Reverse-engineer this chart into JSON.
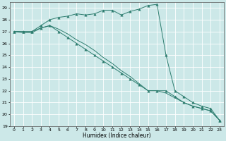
{
  "xlabel": "Humidex (Indice chaleur)",
  "xlim": [
    -0.5,
    23.5
  ],
  "ylim": [
    19,
    29.5
  ],
  "yticks": [
    19,
    20,
    21,
    22,
    23,
    24,
    25,
    26,
    27,
    28,
    29
  ],
  "xticks": [
    0,
    1,
    2,
    3,
    4,
    5,
    6,
    7,
    8,
    9,
    10,
    11,
    12,
    13,
    14,
    15,
    16,
    17,
    18,
    19,
    20,
    21,
    22,
    23
  ],
  "bg_color": "#cce8e8",
  "grid_color": "#ffffff",
  "line_color": "#2d7d6f",
  "series": [
    {
      "x": [
        0,
        1,
        2,
        3,
        4,
        5,
        6,
        7,
        8,
        9,
        10,
        11,
        12,
        13,
        14,
        15,
        16,
        17,
        18,
        19,
        20,
        21,
        22,
        23
      ],
      "y": [
        27.0,
        27.0,
        27.0,
        27.5,
        28.0,
        28.2,
        28.3,
        28.5,
        28.4,
        28.5,
        28.8,
        28.8,
        28.4,
        28.7,
        28.9,
        29.2,
        29.3,
        25.0,
        22.0,
        21.5,
        21.0,
        20.7,
        20.5,
        19.5
      ],
      "marker": "^",
      "markersize": 2.5
    },
    {
      "x": [
        0,
        1,
        2,
        3,
        4,
        5,
        6,
        7,
        8,
        9,
        10,
        11,
        12,
        13,
        14,
        15,
        16,
        17,
        18,
        19,
        20,
        21,
        22,
        23
      ],
      "y": [
        27.0,
        27.0,
        27.0,
        27.3,
        27.5,
        27.0,
        26.5,
        26.0,
        25.5,
        25.0,
        24.5,
        24.0,
        23.5,
        23.0,
        22.5,
        22.0,
        22.0,
        22.0,
        21.5,
        21.0,
        20.7,
        20.5,
        20.3,
        19.5
      ],
      "marker": "^",
      "markersize": 2.5
    },
    {
      "x": [
        0,
        1,
        2,
        3,
        4,
        5,
        6,
        7,
        8,
        9,
        10,
        11,
        12,
        13,
        14,
        15,
        16,
        17,
        18,
        19,
        20,
        21,
        22,
        23
      ],
      "y": [
        27.0,
        26.9,
        26.9,
        27.3,
        27.5,
        27.2,
        26.8,
        26.3,
        25.9,
        25.4,
        24.8,
        24.3,
        23.7,
        23.2,
        22.6,
        22.0,
        22.0,
        21.8,
        21.4,
        21.0,
        20.7,
        20.5,
        20.3,
        19.5
      ],
      "marker": null,
      "markersize": 0
    }
  ]
}
